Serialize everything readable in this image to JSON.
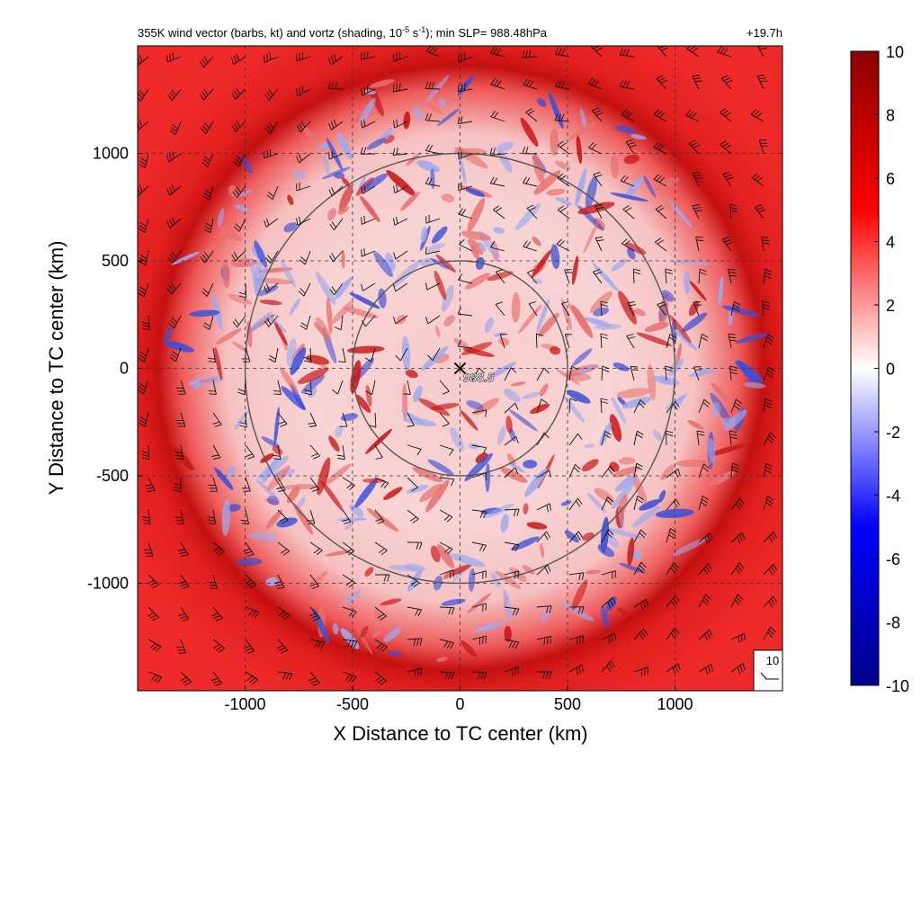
{
  "chart_data": {
    "type": "heatmap",
    "title_left_main": "355K wind vector (barbs, kt) and vortz (shading, 10",
    "title_left_exp": "-5",
    "title_left_mid": " s",
    "title_left_exp2": "-1",
    "title_left_tail": "); min SLP= 988.48hPa",
    "title_right": "+19.7h",
    "xlabel": "X Distance to TC center (km)",
    "ylabel": "Y Distance to TC center (km)",
    "xlim": [
      -1500,
      1500
    ],
    "ylim": [
      -1500,
      1500
    ],
    "xticks": [
      -1000,
      -500,
      0,
      500,
      1000
    ],
    "yticks": [
      -1000,
      -500,
      0,
      500,
      1000
    ],
    "grid": "dashed",
    "range_rings_km": [
      500,
      1000
    ],
    "center": {
      "x": 0,
      "y": 0,
      "marker": "x",
      "label": "988.5"
    },
    "colorbar": {
      "min": -10,
      "max": 10,
      "ticks": [
        10,
        8,
        6,
        4,
        2,
        0,
        -2,
        -4,
        -6,
        -8,
        -10
      ],
      "colors": [
        "#00008b",
        "#0000ff",
        "#ffffff",
        "#ff0000",
        "#8b0000"
      ]
    },
    "reference_barb": {
      "label": "10"
    },
    "units": {
      "wind": "kt",
      "vorticity": "10^-5 s^-1"
    }
  }
}
